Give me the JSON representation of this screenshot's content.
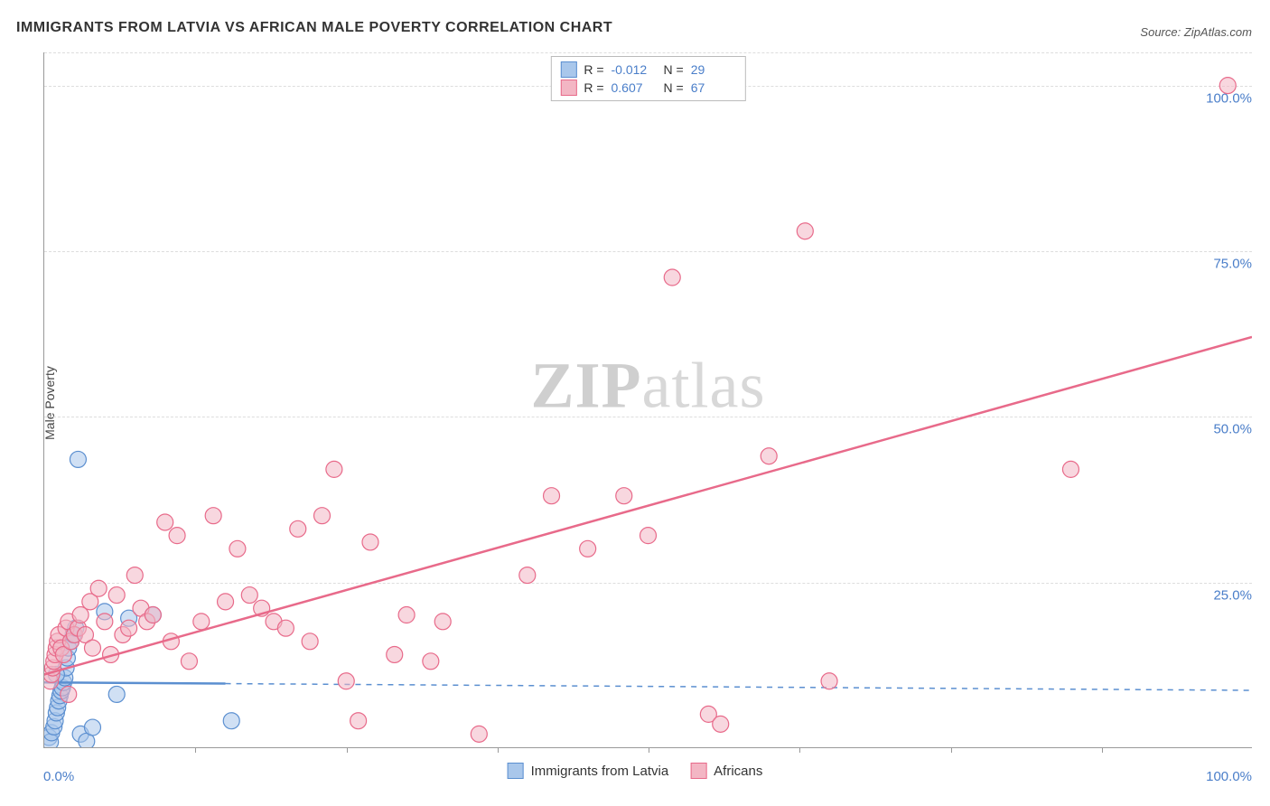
{
  "title": "IMMIGRANTS FROM LATVIA VS AFRICAN MALE POVERTY CORRELATION CHART",
  "source_label": "Source:",
  "source_value": "ZipAtlas.com",
  "ylabel": "Male Poverty",
  "watermark": {
    "part1": "ZIP",
    "part2": "atlas"
  },
  "chart": {
    "type": "scatter",
    "xlim": [
      0,
      100
    ],
    "ylim": [
      0,
      105
    ],
    "background_color": "#ffffff",
    "grid_color": "#dddddd",
    "grid_dash": "4,4",
    "axis_color": "#999999",
    "tick_color": "#4a7ec9",
    "tick_fontsize": 15,
    "y_ticks": [
      {
        "value": 25,
        "label": "25.0%"
      },
      {
        "value": 50,
        "label": "50.0%"
      },
      {
        "value": 75,
        "label": "75.0%"
      },
      {
        "value": 100,
        "label": "100.0%"
      }
    ],
    "x_tick_0": "0.0%",
    "x_tick_100": "100.0%",
    "x_tick_marks": [
      12.5,
      25,
      37.5,
      50,
      62.5,
      75,
      87.5
    ],
    "marker_radius": 9,
    "marker_stroke_width": 1.2,
    "trend_line_width": 2.5,
    "series": [
      {
        "id": "latvia",
        "label": "Immigrants from Latvia",
        "fill_color": "#a9c7eb",
        "stroke_color": "#5b8fd0",
        "fill_opacity": 0.55,
        "r_value": "-0.012",
        "n_value": "29",
        "trend": {
          "y_at_x0": 9.8,
          "y_at_x100": 8.6,
          "solid_until_x": 15,
          "dashed": true
        },
        "points": [
          [
            0.4,
            1.5
          ],
          [
            0.5,
            0.8
          ],
          [
            0.6,
            2.2
          ],
          [
            0.8,
            3.1
          ],
          [
            0.9,
            4.0
          ],
          [
            1.0,
            5.2
          ],
          [
            1.1,
            6.0
          ],
          [
            1.2,
            7.0
          ],
          [
            1.3,
            7.8
          ],
          [
            1.4,
            8.5
          ],
          [
            1.5,
            9.0
          ],
          [
            1.6,
            9.8
          ],
          [
            1.7,
            10.5
          ],
          [
            1.8,
            12.0
          ],
          [
            1.9,
            13.5
          ],
          [
            2.0,
            15.0
          ],
          [
            2.2,
            16.0
          ],
          [
            2.4,
            17.0
          ],
          [
            2.6,
            18.0
          ],
          [
            2.8,
            43.5
          ],
          [
            3.0,
            2.0
          ],
          [
            3.5,
            0.9
          ],
          [
            4.0,
            3.0
          ],
          [
            5.0,
            20.5
          ],
          [
            6.0,
            8.0
          ],
          [
            7.0,
            19.5
          ],
          [
            9.0,
            20.0
          ],
          [
            15.5,
            4.0
          ],
          [
            1.0,
            11.0
          ]
        ]
      },
      {
        "id": "africans",
        "label": "Africans",
        "fill_color": "#f3b6c4",
        "stroke_color": "#e86a8a",
        "fill_opacity": 0.55,
        "r_value": "0.607",
        "n_value": "67",
        "trend": {
          "y_at_x0": 11.0,
          "y_at_x100": 62.0,
          "solid_until_x": 100,
          "dashed": false
        },
        "points": [
          [
            0.5,
            10
          ],
          [
            0.6,
            11
          ],
          [
            0.7,
            12
          ],
          [
            0.8,
            13
          ],
          [
            0.9,
            14
          ],
          [
            1.0,
            15
          ],
          [
            1.1,
            16
          ],
          [
            1.2,
            17
          ],
          [
            1.4,
            15
          ],
          [
            1.6,
            14
          ],
          [
            1.8,
            18
          ],
          [
            2.0,
            19
          ],
          [
            2.2,
            16
          ],
          [
            2.5,
            17
          ],
          [
            2.8,
            18
          ],
          [
            3.0,
            20
          ],
          [
            3.4,
            17
          ],
          [
            3.8,
            22
          ],
          [
            4.0,
            15
          ],
          [
            4.5,
            24
          ],
          [
            5.0,
            19
          ],
          [
            5.5,
            14
          ],
          [
            6.0,
            23
          ],
          [
            6.5,
            17
          ],
          [
            7.0,
            18
          ],
          [
            7.5,
            26
          ],
          [
            8.0,
            21
          ],
          [
            8.5,
            19
          ],
          [
            9.0,
            20
          ],
          [
            10.0,
            34
          ],
          [
            10.5,
            16
          ],
          [
            11.0,
            32
          ],
          [
            12.0,
            13
          ],
          [
            13.0,
            19
          ],
          [
            14.0,
            35
          ],
          [
            15.0,
            22
          ],
          [
            16.0,
            30
          ],
          [
            17.0,
            23
          ],
          [
            18.0,
            21
          ],
          [
            19.0,
            19
          ],
          [
            20.0,
            18
          ],
          [
            21.0,
            33
          ],
          [
            22.0,
            16
          ],
          [
            23.0,
            35
          ],
          [
            24.0,
            42
          ],
          [
            25.0,
            10
          ],
          [
            26.0,
            4
          ],
          [
            27.0,
            31
          ],
          [
            29.0,
            14
          ],
          [
            30.0,
            20
          ],
          [
            32.0,
            13
          ],
          [
            33.0,
            19
          ],
          [
            36.0,
            2
          ],
          [
            40.0,
            26
          ],
          [
            42.0,
            38
          ],
          [
            45.0,
            30
          ],
          [
            48.0,
            38
          ],
          [
            50.0,
            32
          ],
          [
            52.0,
            71
          ],
          [
            55.0,
            5
          ],
          [
            56.0,
            3.5
          ],
          [
            60.0,
            44
          ],
          [
            63.0,
            78
          ],
          [
            65.0,
            10
          ],
          [
            85.0,
            42
          ],
          [
            98.0,
            100
          ],
          [
            2.0,
            8
          ]
        ]
      }
    ]
  },
  "legend_top": {
    "r_label": "R =",
    "n_label": "N ="
  }
}
